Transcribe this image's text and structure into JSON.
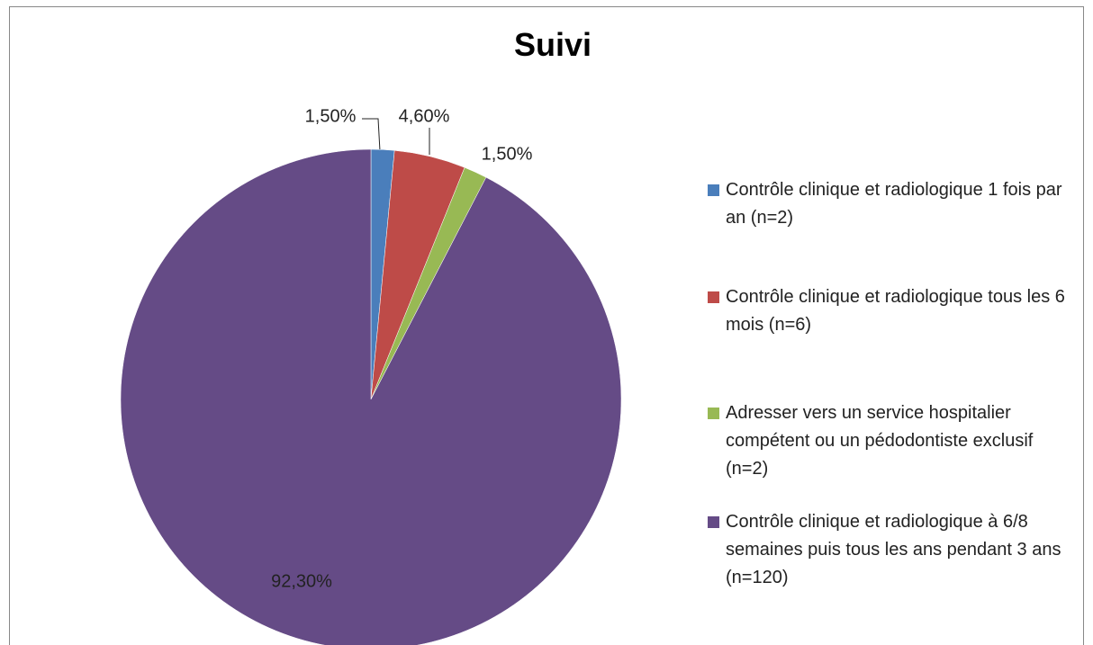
{
  "chart_data": {
    "type": "pie",
    "title": "Suivi",
    "categories": [
      "Contrôle clinique et radiologique 1 fois par an (n=2)",
      "Contrôle clinique et radiologique tous les 6 mois (n=6)",
      "Adresser vers un service hospitalier compétent ou un pédodontiste exclusif (n=2)",
      "Contrôle clinique et radiologique à 6/8 semaines puis tous les ans pendant 3 ans (n=120)"
    ],
    "values": [
      1.5,
      4.6,
      1.5,
      92.3
    ],
    "value_labels": [
      "1,50%",
      "4,60%",
      "1,50%",
      "92,30%"
    ],
    "colors": [
      "#4a7ebb",
      "#be4b48",
      "#98b954",
      "#654b86"
    ],
    "legend": "right"
  }
}
